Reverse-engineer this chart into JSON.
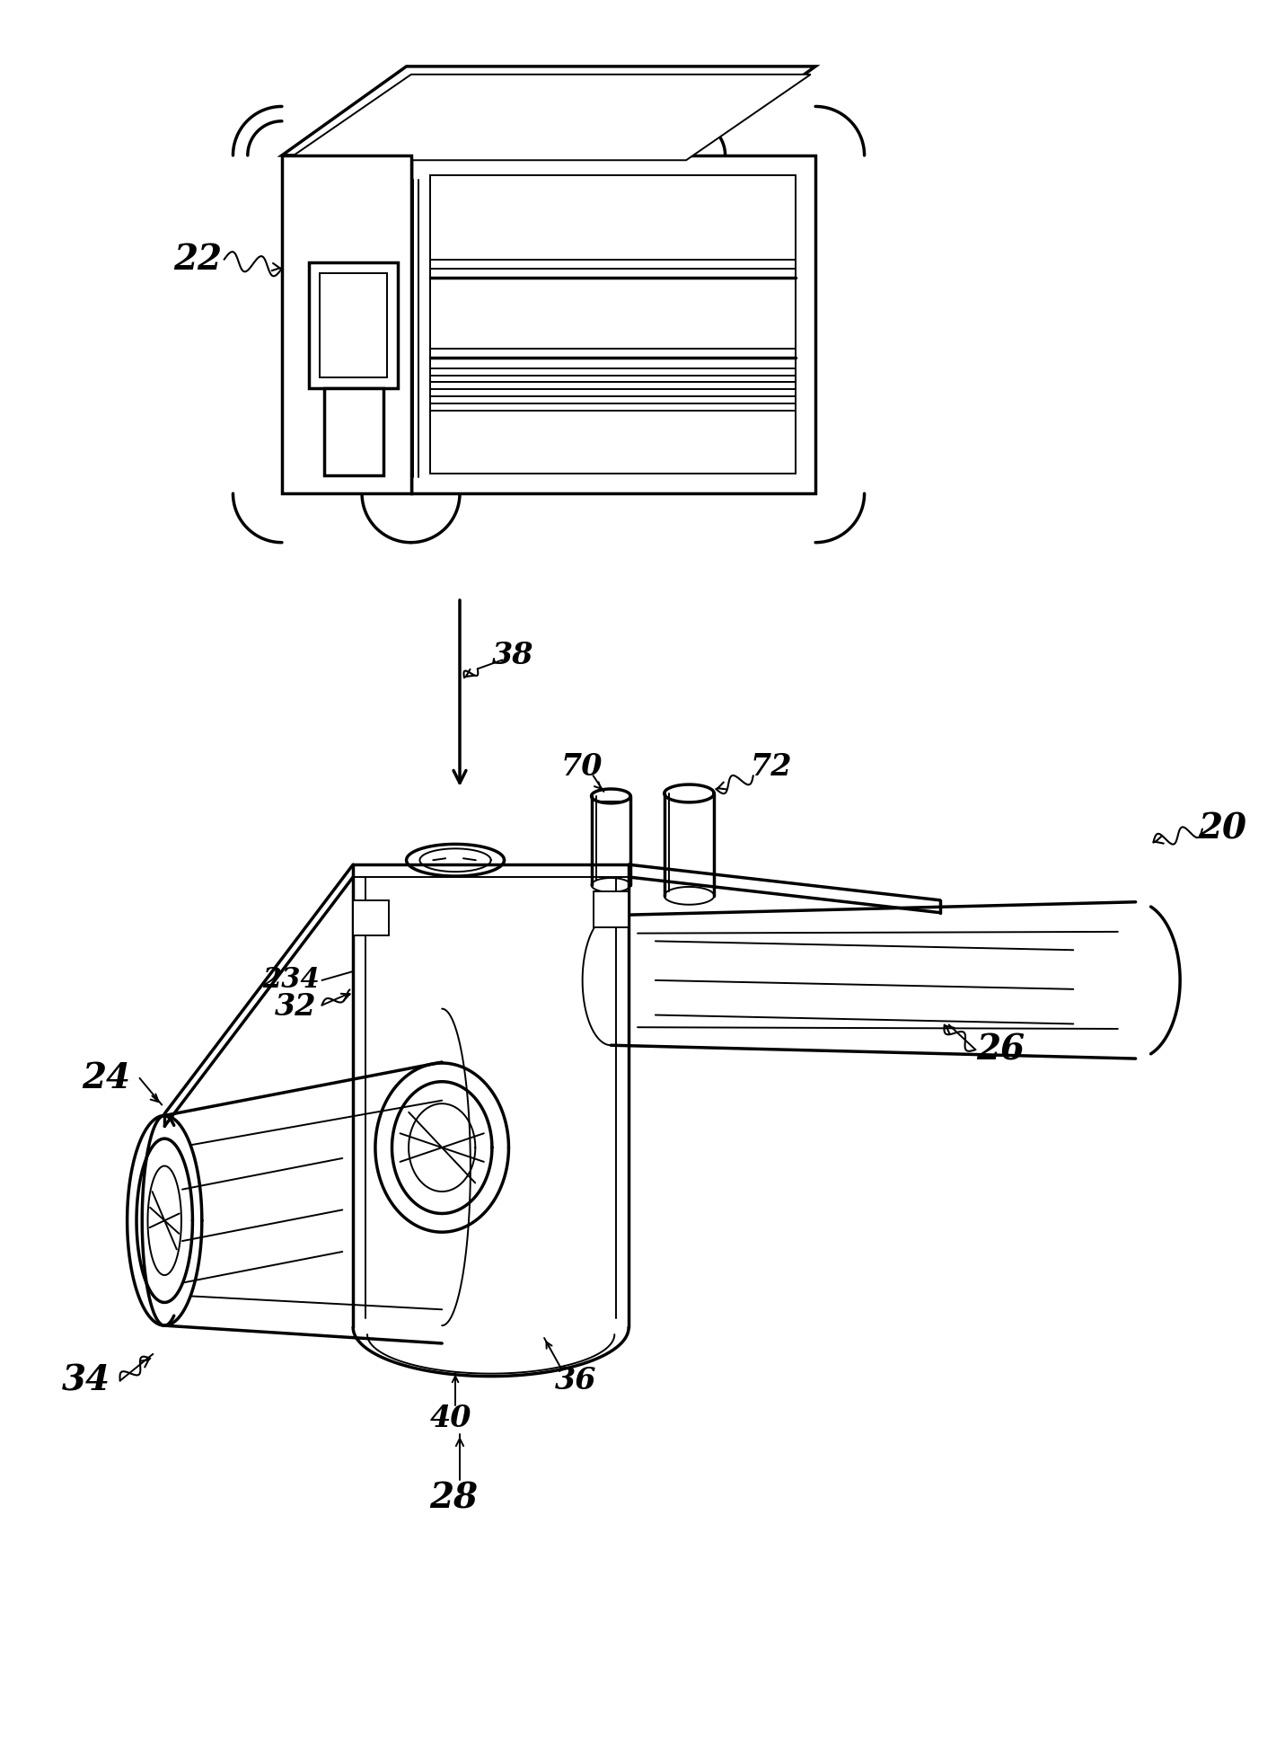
{
  "background_color": "#ffffff",
  "line_color": "#000000",
  "lw": 2.5,
  "lw_t": 1.4,
  "lw_tk": 3.0
}
